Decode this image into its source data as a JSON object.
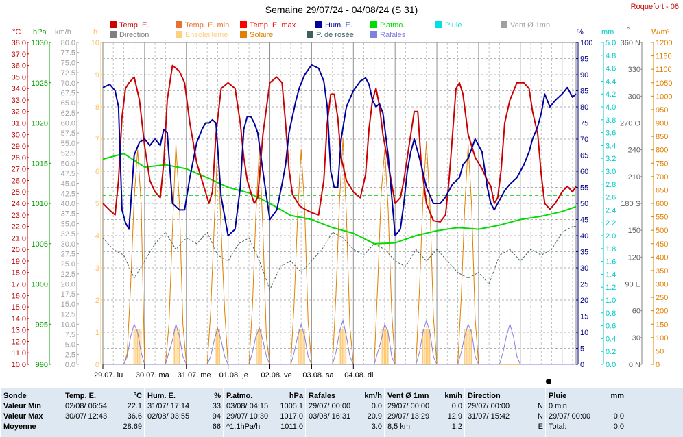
{
  "title": "Semaine 29/07/24 - 04/08/24 (S 31)",
  "station": "Roquefort - 06",
  "legend": [
    {
      "label": "Temp. E.",
      "color": "#cc0000"
    },
    {
      "label": "Temp. E. min",
      "color": "#e87030"
    },
    {
      "label": "Temp. E. max",
      "color": "#ff0000"
    },
    {
      "label": "Hum. E.",
      "color": "#0000a0"
    },
    {
      "label": "P.atmo.",
      "color": "#00dd00"
    },
    {
      "label": "Pluie",
      "color": "#00e0e0"
    },
    {
      "label": "Vent Ø 1mn",
      "color": "#a0a0a0"
    },
    {
      "label": "Direction",
      "color": "#808080"
    },
    {
      "label": "Ensoleilleme",
      "color": "#ffd080"
    },
    {
      "label": "Solaire",
      "color": "#e08000"
    },
    {
      "label": "P. de rosée",
      "color": "#406060"
    },
    {
      "label": "Rafales",
      "color": "#8080e0"
    }
  ],
  "axes": {
    "temp": {
      "unit": "°C",
      "color": "#c00000",
      "min": 10,
      "max": 38,
      "step": 1,
      "decimals": 1
    },
    "pressure": {
      "unit": "hPa",
      "color": "#00a000",
      "min": 990,
      "max": 1030,
      "step": 5,
      "decimals": 0
    },
    "wind": {
      "unit": "km/h",
      "color": "#a0a0a0",
      "min": 0,
      "max": 80,
      "step": 2.5,
      "decimals": 1
    },
    "sun": {
      "unit": "h",
      "color": "#ffc060",
      "min": 0,
      "max": 10,
      "step": 1,
      "decimals": 0
    },
    "humidity": {
      "unit": "%",
      "color": "#000080",
      "min": 0,
      "max": 100,
      "step": 5,
      "decimals": 0
    },
    "rain": {
      "unit": "mm",
      "color": "#00c8c8",
      "min": 0,
      "max": 5,
      "step": 0.2,
      "decimals": 1
    },
    "direction": {
      "unit": "°",
      "color": "#808080",
      "ticks": [
        "0 N",
        "30",
        "60",
        "90 E",
        "120",
        "150",
        "180 S",
        "210",
        "240",
        "270 O",
        "300",
        "330",
        "360 N"
      ]
    },
    "solar": {
      "unit": "W/m²",
      "color": "#e08000",
      "min": 0,
      "max": 1200,
      "step": 50,
      "decimals": 0
    }
  },
  "days": [
    "29.07. lu",
    "30.07. ma",
    "31.07. me",
    "01.08. je",
    "02.08. ve",
    "03.08. sa",
    "04.08. di"
  ],
  "chart_data": {
    "type": "line",
    "x_unit": "hours since 29/07 00:00",
    "series": [
      {
        "name": "Temp. E.",
        "axis": "temp",
        "color": "#cc0000",
        "x": [
          0,
          4,
          7,
          9,
          11,
          13,
          15,
          18,
          21,
          24,
          27,
          30,
          33,
          35,
          37,
          40,
          44,
          47,
          50,
          54,
          57,
          59,
          61,
          63,
          65,
          68,
          72,
          76,
          79,
          81,
          83,
          85,
          87,
          89,
          92,
          96,
          100,
          103,
          105,
          107,
          109,
          111,
          113,
          116,
          120,
          124,
          127,
          129,
          131,
          133,
          135,
          137,
          140,
          144,
          148,
          151,
          153,
          155,
          157,
          159,
          161,
          164,
          168,
          171,
          173,
          175,
          177,
          179,
          181,
          183,
          186,
          190,
          194,
          197,
          199,
          201,
          203,
          205,
          207,
          210,
          214,
          218,
          221,
          223,
          225,
          227,
          229,
          231,
          234,
          238,
          242,
          245,
          247,
          250,
          252,
          254,
          257,
          260,
          264,
          267,
          270,
          272
        ],
        "values": [
          24,
          23.4,
          23,
          26,
          31.5,
          34,
          34.5,
          35,
          33,
          29,
          26,
          25,
          24.5,
          27.5,
          33,
          36,
          35.5,
          34.5,
          31,
          27.5,
          26,
          25,
          24,
          25,
          30,
          34,
          34.5,
          34,
          31,
          28,
          26,
          25,
          24,
          24.5,
          30,
          34.5,
          35,
          34.5,
          31,
          27,
          24.8,
          24.3,
          23.8,
          23.5,
          23.2,
          23,
          26,
          31,
          33.5,
          33.5,
          31.5,
          28,
          26,
          25,
          24.5,
          26.5,
          30.5,
          33,
          34,
          32.5,
          30,
          27.5,
          24,
          24.5,
          26,
          28,
          30,
          32,
          32,
          27.5,
          24,
          22.5,
          22.4,
          23,
          26,
          30,
          34,
          34.5,
          33.5,
          30,
          28,
          27,
          26,
          25.5,
          24,
          24.5,
          27,
          31,
          33,
          34.5,
          34.5,
          34,
          32,
          30,
          26.5,
          24,
          23.5,
          24,
          25,
          25.5,
          25,
          25.5
        ]
      },
      {
        "name": "Hum. E.",
        "axis": "humidity",
        "color": "#0000a0",
        "x": [
          0,
          4,
          7,
          9,
          11,
          13,
          15,
          18,
          21,
          24,
          27,
          30,
          33,
          35,
          37,
          40,
          44,
          47,
          50,
          54,
          57,
          59,
          61,
          63,
          65,
          68,
          72,
          76,
          79,
          81,
          83,
          85,
          87,
          89,
          92,
          96,
          100,
          103,
          105,
          107,
          109,
          111,
          113,
          116,
          120,
          124,
          127,
          129,
          131,
          133,
          135,
          137,
          140,
          144,
          148,
          151,
          153,
          155,
          157,
          159,
          161,
          164,
          168,
          171,
          173,
          175,
          177,
          179,
          181,
          183,
          186,
          190,
          194,
          197,
          199,
          201,
          203,
          205,
          207,
          210,
          214,
          218,
          221,
          223,
          225,
          227,
          229,
          231,
          234,
          238,
          242,
          245,
          247,
          250,
          252,
          254,
          257,
          260,
          264,
          267,
          270,
          272
        ],
        "values": [
          86,
          87,
          85,
          80,
          48,
          44,
          42,
          65,
          69,
          70,
          68,
          70,
          68,
          73,
          72,
          50,
          48,
          48,
          58,
          69,
          73,
          75,
          75,
          76,
          75,
          52,
          40,
          42,
          55,
          73,
          77,
          77,
          75,
          72,
          60,
          45,
          48,
          56,
          62,
          72,
          77,
          82,
          86,
          90,
          93,
          92,
          88,
          80,
          60,
          55,
          55,
          70,
          80,
          85,
          88,
          89,
          87,
          82,
          80,
          81,
          78,
          65,
          40,
          42,
          50,
          60,
          66,
          70,
          66,
          62,
          55,
          50,
          50,
          52,
          54,
          56,
          57,
          58,
          62,
          64,
          70,
          66,
          55,
          50,
          48,
          50,
          52,
          54,
          56,
          58,
          62,
          66,
          70,
          74,
          78,
          84,
          80,
          82,
          84,
          86,
          83,
          84
        ]
      },
      {
        "name": "P.atmo.",
        "axis": "pressure",
        "color": "#00dd00",
        "x": [
          0,
          12,
          24,
          36,
          48,
          60,
          72,
          84,
          96,
          108,
          120,
          132,
          144,
          156,
          168,
          180,
          192,
          204,
          216,
          228,
          240,
          252,
          264,
          272
        ],
        "values": [
          1015.5,
          1016.2,
          1014.5,
          1014.8,
          1014.3,
          1013.2,
          1012.0,
          1011.3,
          1010.0,
          1008.5,
          1008.0,
          1007.0,
          1006.3,
          1005.0,
          1005.1,
          1006.0,
          1006.6,
          1007.0,
          1006.8,
          1007.3,
          1008.0,
          1008.4,
          1009.0,
          1009.6
        ]
      },
      {
        "name": "P. de rosée",
        "axis": "temp",
        "color": "#406060",
        "dashed": true,
        "x": [
          0,
          6,
          12,
          18,
          24,
          30,
          36,
          42,
          48,
          54,
          60,
          66,
          72,
          78,
          84,
          90,
          96,
          102,
          108,
          114,
          120,
          126,
          132,
          138,
          144,
          150,
          156,
          162,
          168,
          174,
          180,
          186,
          192,
          198,
          204,
          210,
          216,
          222,
          228,
          234,
          240,
          246,
          252,
          258,
          264,
          270,
          272
        ],
        "values": [
          21,
          20,
          19.5,
          17.5,
          19,
          20.5,
          21.5,
          20,
          21,
          20.5,
          21.5,
          19.5,
          19,
          20.5,
          21,
          19,
          16.5,
          18.5,
          19,
          18,
          19,
          20,
          21.5,
          21,
          20,
          19.5,
          20.5,
          20,
          19,
          18.5,
          20,
          19,
          20,
          19,
          18,
          17.5,
          18,
          17,
          19.5,
          20,
          19,
          20,
          19.5,
          20,
          21.5,
          22,
          22
        ]
      },
      {
        "name": "Solaire",
        "axis": "solar",
        "color": "#e08000",
        "x": [
          0,
          12,
          14,
          16,
          18,
          20,
          22,
          24,
          34,
          36,
          38,
          40,
          42,
          44,
          46,
          48,
          58,
          60,
          62,
          64,
          66,
          68,
          70,
          72,
          82,
          84,
          86,
          88,
          90,
          92,
          94,
          96,
          106,
          108,
          110,
          112,
          114,
          116,
          118,
          120,
          130,
          132,
          134,
          136,
          138,
          140,
          142,
          144,
          154,
          156,
          158,
          160,
          162,
          164,
          166,
          168,
          178,
          180,
          182,
          184,
          186,
          188,
          190,
          192,
          202,
          204,
          206,
          208,
          210,
          212,
          214,
          216,
          226,
          228,
          230,
          232,
          234,
          236,
          238,
          240,
          250,
          252,
          254,
          256,
          258,
          260,
          262,
          264,
          272
        ],
        "values": [
          0,
          0,
          40,
          300,
          620,
          800,
          600,
          0,
          0,
          0,
          150,
          500,
          820,
          600,
          150,
          0,
          0,
          0,
          200,
          520,
          820,
          500,
          200,
          0,
          0,
          0,
          220,
          560,
          810,
          500,
          100,
          0,
          0,
          0,
          230,
          560,
          800,
          580,
          160,
          0,
          0,
          0,
          260,
          600,
          840,
          560,
          140,
          0,
          0,
          0,
          300,
          640,
          800,
          580,
          200,
          0,
          0,
          0,
          280,
          620,
          830,
          600,
          180,
          0,
          0,
          0,
          250,
          580,
          820,
          590,
          170,
          0,
          0,
          0,
          0,
          0,
          0,
          0,
          0,
          0,
          0,
          0,
          0,
          0,
          0,
          0,
          0,
          0,
          0
        ]
      },
      {
        "name": "Rafales",
        "axis": "wind",
        "color": "#8080e0",
        "x": [
          0,
          8,
          12,
          14,
          16,
          18,
          20,
          22,
          24,
          32,
          36,
          38,
          40,
          42,
          44,
          46,
          48,
          56,
          60,
          62,
          64,
          66,
          68,
          70,
          72,
          80,
          84,
          86,
          88,
          90,
          92,
          94,
          96,
          104,
          108,
          110,
          112,
          114,
          116,
          118,
          120,
          128,
          132,
          134,
          136,
          138,
          140,
          142,
          144,
          152,
          156,
          158,
          160,
          162,
          164,
          166,
          168,
          176,
          180,
          182,
          184,
          186,
          188,
          190,
          192,
          200,
          204,
          206,
          208,
          210,
          212,
          214,
          216,
          224,
          228,
          230,
          232,
          234,
          236,
          238,
          240,
          248,
          252,
          254,
          256,
          258,
          260,
          262,
          264,
          272
        ],
        "values": [
          0,
          0,
          0,
          2,
          7,
          10,
          8,
          3,
          0,
          0,
          0,
          3,
          6,
          10,
          7,
          2,
          0,
          0,
          0,
          2,
          6,
          9,
          6,
          2,
          0,
          0,
          0,
          3,
          7,
          9,
          6,
          2,
          0,
          0,
          0,
          3,
          7,
          10,
          7,
          2,
          0,
          0,
          0,
          3,
          8,
          11,
          7,
          2,
          0,
          0,
          0,
          3,
          6,
          10,
          8,
          2,
          0,
          0,
          0,
          3,
          8,
          11,
          8,
          2,
          0,
          0,
          0,
          3,
          7,
          10,
          8,
          2,
          0,
          0,
          0,
          3,
          7,
          10,
          7,
          2,
          0,
          0,
          0,
          0,
          0,
          0,
          0,
          0,
          0,
          0
        ]
      }
    ],
    "reference_line": {
      "name": "Pression moyenne",
      "axis": "pressure",
      "value": 1011.0,
      "color": "#00c000"
    },
    "grid": true,
    "legend_position": "top"
  },
  "stats": {
    "columns": [
      {
        "title": "Sonde",
        "unit": "",
        "rows": [
          {
            "label": "Valeur Min"
          },
          {
            "label": "Valeur Max"
          },
          {
            "label": "Moyenne"
          }
        ]
      },
      {
        "title": "Temp. E.",
        "unit": "°C",
        "rows": [
          {
            "date": "02/08/  06:54",
            "value": "22.1"
          },
          {
            "date": "30/07/  12:43",
            "value": "36.6"
          },
          {
            "date": "",
            "value": "28.69"
          }
        ]
      },
      {
        "title": "Hum. E.",
        "unit": "%",
        "rows": [
          {
            "date": "31/07/  17:14",
            "value": "33"
          },
          {
            "date": "02/08/  03:55",
            "value": "94"
          },
          {
            "date": "",
            "value": "66"
          }
        ]
      },
      {
        "title": "P.atmo.",
        "unit": "hPa",
        "rows": [
          {
            "date": "03/08/  04:15",
            "value": "1005.1"
          },
          {
            "date": "29/07/  10:30",
            "value": "1017.0"
          },
          {
            "date": "^1.1hPa/h",
            "value": "1011.0"
          }
        ]
      },
      {
        "title": "Rafales",
        "unit": "km/h",
        "rows": [
          {
            "date": "29/07/  00:00",
            "value": "0.0"
          },
          {
            "date": "03/08/  16:31",
            "value": "20.9"
          },
          {
            "date": "",
            "value": "3.0"
          }
        ]
      },
      {
        "title": "Vent Ø 1mn",
        "unit": "km/h",
        "rows": [
          {
            "date": "29/07/  00:00",
            "value": "0.0"
          },
          {
            "date": "29/07/  13:29",
            "value": "12.9"
          },
          {
            "date": "8,5 km",
            "value": "1.2"
          }
        ]
      },
      {
        "title": "Direction",
        "unit": "",
        "rows": [
          {
            "date": "29/07/  00:00",
            "value": "N"
          },
          {
            "date": "31/07/  15:42",
            "value": "N"
          },
          {
            "date": "",
            "value": "E"
          }
        ]
      },
      {
        "title": "Pluie",
        "unit": "mm",
        "rows": [
          {
            "date": "0 min.",
            "value": ""
          },
          {
            "date": "29/07/  00:00",
            "value": "0.0"
          },
          {
            "date": "Total:",
            "value": "0.0"
          }
        ]
      }
    ]
  }
}
